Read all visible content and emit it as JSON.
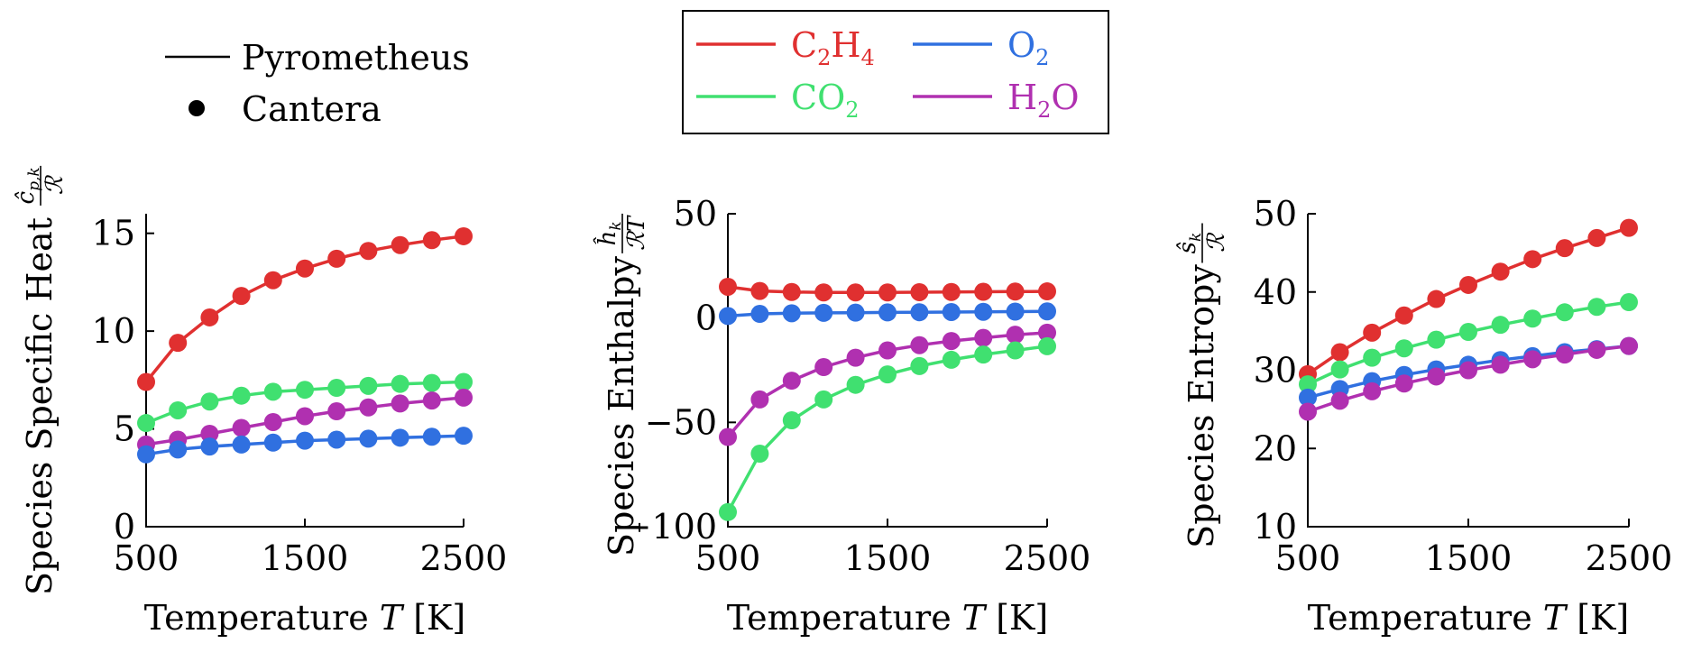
{
  "legend_style": {
    "line_label": "Pyrometheus",
    "marker_label": "Cantera"
  },
  "legend_species": [
    {
      "base": "C",
      "sub1": "2",
      "mid": "H",
      "sub2": "4",
      "tail": "",
      "color": "#e03030"
    },
    {
      "base": "O",
      "sub1": "2",
      "mid": "",
      "sub2": "",
      "tail": "",
      "color": "#3070e0"
    },
    {
      "base": "CO",
      "sub1": "2",
      "mid": "",
      "sub2": "",
      "tail": "",
      "color": "#40e070"
    },
    {
      "base": "H",
      "sub1": "2",
      "mid": "O",
      "sub2": "",
      "tail": "",
      "color": "#b030b0"
    }
  ],
  "chart_data": [
    {
      "type": "line",
      "ylabel": "Species Specific Heat",
      "ylabel_frac": {
        "num": "ĉ",
        "num_sub": "p,k",
        "den": "ℛ"
      },
      "xlabel": "Temperature",
      "xlabel_var": "T",
      "xlabel_unit": "[K]",
      "xlim": [
        500,
        2500
      ],
      "ylim": [
        0,
        16
      ],
      "xticks": [
        500,
        1500,
        2500
      ],
      "yticks": [
        0,
        5,
        10,
        15
      ],
      "ytick_labels": [
        "0",
        "5",
        "10",
        "15"
      ],
      "x": [
        500,
        700,
        900,
        1100,
        1300,
        1500,
        1700,
        1900,
        2100,
        2300,
        2500
      ],
      "series": [
        {
          "name": "C2H4",
          "color": "#e03030",
          "values": [
            7.4,
            9.4,
            10.7,
            11.8,
            12.6,
            13.2,
            13.7,
            14.1,
            14.4,
            14.65,
            14.85
          ]
        },
        {
          "name": "CO2",
          "color": "#40e070",
          "values": [
            5.3,
            5.95,
            6.4,
            6.7,
            6.9,
            7.0,
            7.1,
            7.2,
            7.3,
            7.35,
            7.4
          ]
        },
        {
          "name": "H2O",
          "color": "#b030b0",
          "values": [
            4.2,
            4.45,
            4.75,
            5.05,
            5.35,
            5.65,
            5.9,
            6.1,
            6.3,
            6.45,
            6.6
          ]
        },
        {
          "name": "O2",
          "color": "#3070e0",
          "values": [
            3.7,
            3.95,
            4.1,
            4.2,
            4.3,
            4.4,
            4.45,
            4.5,
            4.55,
            4.6,
            4.65
          ]
        }
      ]
    },
    {
      "type": "line",
      "ylabel": "Species Enthalpy",
      "ylabel_frac": {
        "num": "ĥ",
        "num_sub": "k",
        "den": "ℛT"
      },
      "xlabel": "Temperature",
      "xlabel_var": "T",
      "xlabel_unit": "[K]",
      "xlim": [
        500,
        2500
      ],
      "ylim": [
        -100,
        50
      ],
      "xticks": [
        500,
        1500,
        2500
      ],
      "yticks": [
        -100,
        -50,
        0,
        50
      ],
      "ytick_labels": [
        "−100",
        "−50",
        "0",
        "50"
      ],
      "x": [
        500,
        700,
        900,
        1100,
        1300,
        1500,
        1700,
        1900,
        2100,
        2300,
        2500
      ],
      "series": [
        {
          "name": "C2H4",
          "color": "#e03030",
          "values": [
            15,
            13,
            12.5,
            12.3,
            12.3,
            12.3,
            12.4,
            12.5,
            12.6,
            12.7,
            12.8
          ]
        },
        {
          "name": "O2",
          "color": "#3070e0",
          "values": [
            1,
            2,
            2.3,
            2.5,
            2.6,
            2.7,
            2.8,
            2.9,
            3.0,
            3.1,
            3.2
          ]
        },
        {
          "name": "H2O",
          "color": "#b030b0",
          "values": [
            -57,
            -39,
            -30,
            -23.5,
            -19,
            -15.5,
            -13,
            -11,
            -9.5,
            -8,
            -7
          ]
        },
        {
          "name": "CO2",
          "color": "#40e070",
          "values": [
            -93,
            -65,
            -49,
            -39,
            -32,
            -27,
            -23,
            -20,
            -17.5,
            -15.5,
            -13.5
          ]
        }
      ]
    },
    {
      "type": "line",
      "ylabel": "Species Entropy",
      "ylabel_frac": {
        "num": "ŝ",
        "num_sub": "k",
        "den": "ℛ"
      },
      "xlabel": "Temperature",
      "xlabel_var": "T",
      "xlabel_unit": "[K]",
      "xlim": [
        500,
        2500
      ],
      "ylim": [
        10,
        50
      ],
      "xticks": [
        500,
        1500,
        2500
      ],
      "yticks": [
        10,
        20,
        30,
        40,
        50
      ],
      "ytick_labels": [
        "10",
        "20",
        "30",
        "40",
        "50"
      ],
      "x": [
        500,
        700,
        900,
        1100,
        1300,
        1500,
        1700,
        1900,
        2100,
        2300,
        2500
      ],
      "series": [
        {
          "name": "C2H4",
          "color": "#e03030",
          "values": [
            29.5,
            32.3,
            34.8,
            37.0,
            39.1,
            40.9,
            42.6,
            44.2,
            45.6,
            46.9,
            48.2
          ]
        },
        {
          "name": "CO2",
          "color": "#40e070",
          "values": [
            28.2,
            30.1,
            31.6,
            32.8,
            33.9,
            34.9,
            35.8,
            36.6,
            37.4,
            38.1,
            38.7
          ]
        },
        {
          "name": "O2",
          "color": "#3070e0",
          "values": [
            26.5,
            27.6,
            28.6,
            29.4,
            30.1,
            30.7,
            31.3,
            31.8,
            32.3,
            32.7,
            33.1
          ]
        },
        {
          "name": "H2O",
          "color": "#b030b0",
          "values": [
            24.7,
            26.1,
            27.3,
            28.3,
            29.2,
            30.0,
            30.7,
            31.4,
            32.0,
            32.6,
            33.1
          ]
        }
      ]
    }
  ]
}
